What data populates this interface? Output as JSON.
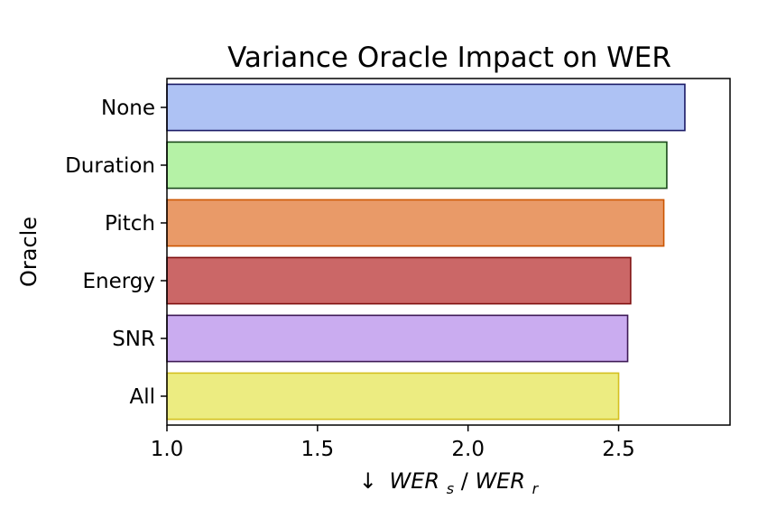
{
  "chart_data": {
    "type": "bar",
    "orientation": "horizontal",
    "title": "Variance Oracle Impact on WER",
    "ylabel": "Oracle",
    "xlabel": {
      "arrow": "↓",
      "num_base": "WER",
      "num_sub": "s",
      "slash": "/",
      "den_base": "WER",
      "den_sub": "r"
    },
    "xlim": [
      1.0,
      2.87
    ],
    "xticks": [
      "1.0",
      "1.5",
      "2.0",
      "2.5"
    ],
    "categories": [
      "None",
      "Duration",
      "Pitch",
      "Energy",
      "SNR",
      "All"
    ],
    "values": [
      2.72,
      2.66,
      2.65,
      2.54,
      2.53,
      2.5
    ],
    "colors": [
      "#aec2f4",
      "#b5f2a6",
      "#e99a68",
      "#cb6767",
      "#caacf0",
      "#ecec81"
    ],
    "edge_colors": [
      "#1a1a66",
      "#1a4a1a",
      "#cc5500",
      "#801010",
      "#3d1a55",
      "#d4c020"
    ],
    "grid": false,
    "legend": "none"
  }
}
